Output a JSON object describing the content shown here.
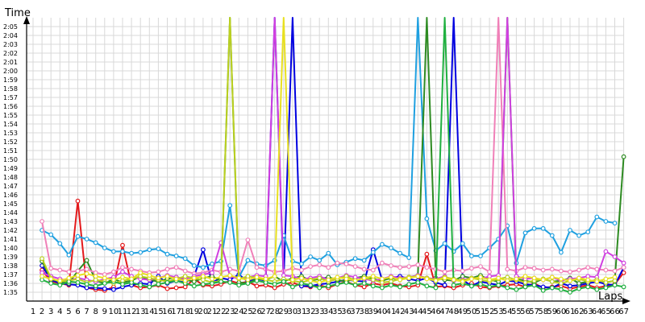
{
  "chart_data": {
    "type": "line",
    "title": "",
    "ylabel": "Time",
    "xlabel": "Laps",
    "x": [
      1,
      2,
      3,
      4,
      5,
      6,
      7,
      8,
      9,
      10,
      11,
      12,
      13,
      14,
      15,
      16,
      17,
      18,
      19,
      20,
      21,
      22,
      23,
      24,
      25,
      26,
      27,
      28,
      29,
      30,
      31,
      32,
      33,
      34,
      35,
      36,
      37,
      38,
      39,
      40,
      41,
      42,
      43,
      44,
      45,
      46,
      47,
      48,
      49,
      50,
      51,
      52,
      53,
      54,
      55,
      56,
      57,
      58,
      59,
      60,
      61,
      62,
      63,
      64,
      65,
      66,
      67
    ],
    "x_tick_labels": [
      "1",
      "2",
      "3",
      "4",
      "5",
      "6",
      "7",
      "8",
      "9",
      "10",
      "11",
      "12",
      "13",
      "14",
      "15",
      "16",
      "17",
      "18",
      "19",
      "20",
      "21",
      "22",
      "23",
      "24",
      "25",
      "26",
      "27",
      "28",
      "29",
      "30",
      "31",
      "32",
      "33",
      "34",
      "35",
      "36",
      "37",
      "38",
      "39",
      "40",
      "41",
      "42",
      "43",
      "44",
      "45",
      "46",
      "47",
      "48",
      "49",
      "50",
      "51",
      "52",
      "53",
      "54",
      "55",
      "56",
      "57",
      "58",
      "59",
      "60",
      "61",
      "62",
      "63",
      "64",
      "65",
      "66",
      "67"
    ],
    "y_unit": "seconds",
    "ylim": [
      94,
      126
    ],
    "y_ticks": [
      95,
      96,
      97,
      98,
      99,
      100,
      101,
      102,
      103,
      104,
      105,
      106,
      107,
      108,
      109,
      110,
      111,
      112,
      113,
      114,
      115,
      116,
      117,
      118,
      119,
      120,
      121,
      122,
      123,
      124,
      125
    ],
    "y_tick_labels": [
      "1:35",
      "1:36",
      "1:37",
      "1:38",
      "1:39",
      "1:40",
      "1:41",
      "1:42",
      "1:43",
      "1:44",
      "1:45",
      "1:46",
      "1:47",
      "1:48",
      "1:49",
      "1:50",
      "1:51",
      "1:52",
      "1:53",
      "1:54",
      "1:55",
      "1:56",
      "1:57",
      "1:58",
      "1:59",
      "2:00",
      "2:01",
      "2:02",
      "2:03",
      "2:04",
      "2:05"
    ],
    "grid": true,
    "legend": "none",
    "series": [
      {
        "color": "#e31a1c",
        "values": [
          null,
          97.5,
          96.2,
          96,
          95.8,
          105.3,
          95.5,
          95.3,
          95.2,
          95.6,
          100.3,
          95.8,
          95.5,
          95.6,
          95.8,
          95.4,
          95.5,
          95.6,
          96.5,
          95.8,
          95.7,
          95.9,
          96.3,
          96,
          96.2,
          95.7,
          95.8,
          95.5,
          95.9,
          96.1,
          95.7,
          95.6,
          95.8,
          95.5,
          95.9,
          96.2,
          95.8,
          95.6,
          96,
          95.8,
          96,
          95.7,
          95.6,
          95.8,
          99.3,
          95.6,
          95.7,
          95.5,
          95.8,
          96,
          95.6,
          95.5,
          95.7,
          95.8,
          95.9,
          95.6,
          96,
          95.5,
          95.6,
          95.7,
          95.4,
          95.6,
          95.8,
          95.5,
          95.7,
          95.9,
          97.2
        ]
      },
      {
        "color": "#0000e0",
        "values": [
          null,
          98,
          96.4,
          96,
          95.9,
          95.8,
          95.5,
          95.5,
          95.4,
          95.3,
          95.6,
          95.8,
          96,
          95.9,
          96.8,
          96,
          96.3,
          96.1,
          96.8,
          99.8,
          96.1,
          96.6,
          96.4,
          97,
          96.2,
          96.5,
          96.3,
          130,
          96.2,
          130,
          95.7,
          95.7,
          95.9,
          96,
          96.2,
          96.4,
          96.3,
          96.2,
          99.8,
          96.4,
          96.6,
          96.8,
          96.5,
          96.3,
          96.6,
          96.1,
          95.8,
          130,
          96.4,
          95.7,
          96.2,
          96,
          95.8,
          96.3,
          96.2,
          95.9,
          95.8,
          95.6,
          95.5,
          96,
          95.7,
          95.8,
          96,
          96.2,
          95.9,
          95.8,
          97.8
        ]
      },
      {
        "color": "#1fa0e0",
        "values": [
          null,
          102,
          101.5,
          100.5,
          99.2,
          101.3,
          101,
          100.6,
          100,
          99.6,
          99.6,
          99.4,
          99.5,
          99.8,
          99.9,
          99.3,
          99.1,
          98.8,
          98,
          97.8,
          98.2,
          98.5,
          104.8,
          96.7,
          98.6,
          98.2,
          98,
          98.6,
          101.4,
          98.5,
          98.2,
          99,
          98.6,
          99.4,
          98.1,
          98.4,
          98.8,
          98.6,
          99.5,
          100.4,
          100,
          99.4,
          98.9,
          130,
          103.3,
          99.7,
          100.5,
          99.6,
          100.5,
          99.1,
          99.1,
          100,
          101,
          102.5,
          98.3,
          101.7,
          102.2,
          102.2,
          101.4,
          99.5,
          102,
          101.4,
          101.8,
          103.5,
          103,
          102.8,
          null
        ]
      },
      {
        "color": "#2e8b22",
        "values": [
          null,
          98.5,
          96.5,
          96.2,
          96,
          97.4,
          98.6,
          96.3,
          96,
          96.5,
          96.1,
          96.3,
          96.8,
          96.4,
          96.2,
          96.5,
          96.7,
          96.4,
          96.2,
          96.6,
          96.8,
          96.3,
          130,
          96.1,
          96,
          96.5,
          96.4,
          96.8,
          96.2,
          96.6,
          96.8,
          96.3,
          96.5,
          96.7,
          96.4,
          96.2,
          96.6,
          96.8,
          96.5,
          96.3,
          96.6,
          96.4,
          96.7,
          96.9,
          130,
          96.6,
          96.4,
          96.3,
          96.8,
          96.6,
          96.9,
          96.4,
          96.2,
          130,
          96.5,
          96.3,
          96.1,
          96.5,
          96.2,
          96.3,
          96.6,
          96,
          96.2,
          96.4,
          96.1,
          96.3,
          110.3
        ]
      },
      {
        "color": "#f080b8",
        "values": [
          null,
          103,
          97.7,
          97.5,
          97.3,
          97.4,
          97.6,
          97.2,
          97,
          97.3,
          97.8,
          97.6,
          97.4,
          97.2,
          97.3,
          97.6,
          97.8,
          97.4,
          97.1,
          97.2,
          97.5,
          97.3,
          97.6,
          97.4,
          100.9,
          97.8,
          97.6,
          97.3,
          97.4,
          97.7,
          97.5,
          97.9,
          98.1,
          97.8,
          98.3,
          98.2,
          97.9,
          97.6,
          97.5,
          98.3,
          98,
          97.8,
          97.9,
          98.1,
          97.8,
          97.6,
          97.3,
          97.5,
          97.4,
          97.7,
          97.9,
          97.3,
          130,
          97.6,
          97.4,
          97.8,
          97.7,
          97.5,
          97.6,
          97.4,
          97.3,
          97.5,
          97.8,
          97.6,
          97.5,
          97.4,
          97.8
        ]
      },
      {
        "color": "#d040e0",
        "values": [
          null,
          97.2,
          96.8,
          96.5,
          96.3,
          96.6,
          96.4,
          96.2,
          96.5,
          96.7,
          97.3,
          96.8,
          96.5,
          96.4,
          96.6,
          96.9,
          96.7,
          96.5,
          96.8,
          97,
          97.2,
          100.6,
          96.8,
          96.5,
          96.7,
          96.9,
          96.8,
          130,
          96.9,
          96.8,
          96.5,
          96.6,
          96.8,
          96.4,
          96.6,
          96.9,
          96.7,
          96.5,
          96.3,
          96.5,
          96.8,
          96.6,
          96.7,
          96.9,
          96.6,
          96.5,
          96.8,
          96.3,
          96.4,
          96.6,
          96.5,
          96.8,
          96.9,
          130,
          96.8,
          96.5,
          96.6,
          96.4,
          96.7,
          96.3,
          96.5,
          96.6,
          96.8,
          96.7,
          99.6,
          99,
          98.3
        ]
      },
      {
        "color": "#bcd020",
        "values": [
          null,
          98.8,
          96.6,
          96.2,
          96.3,
          96.5,
          96.1,
          96.4,
          96.2,
          96,
          96.3,
          96.5,
          96.8,
          96.6,
          96.4,
          96.2,
          96.5,
          96.8,
          96.6,
          96.4,
          96.1,
          96.3,
          130,
          96.5,
          96.8,
          96.6,
          96.4,
          96.2,
          96.5,
          96.3,
          96.1,
          96.4,
          96.6,
          96.2,
          96.5,
          96.8,
          96.3,
          96.6,
          96.4,
          96.1,
          96.2,
          96.5,
          96.7,
          96.8,
          96.6,
          96.4,
          96.7,
          96.5,
          96.3,
          96.6,
          96.4,
          96.2,
          96.5,
          96.7,
          96.4,
          96.1,
          96.3,
          96.5,
          96.2,
          96,
          96.3,
          96.5,
          96.2,
          96.4,
          96.1,
          96.3,
          null
        ]
      },
      {
        "color": "#20b040",
        "values": [
          null,
          96.4,
          96,
          95.8,
          96.2,
          96.1,
          95.9,
          95.7,
          96,
          96.2,
          95.9,
          96.1,
          95.8,
          95.6,
          95.9,
          96.1,
          96.3,
          96,
          95.7,
          95.9,
          96,
          96.2,
          96.1,
          95.8,
          96,
          96.3,
          96.1,
          95.9,
          96.2,
          95.6,
          96,
          95.8,
          95.5,
          95.7,
          95.9,
          96.1,
          95.8,
          96,
          95.7,
          95.5,
          95.8,
          95.6,
          95.9,
          96.1,
          95.7,
          95.5,
          130,
          95.8,
          96,
          95.7,
          95.9,
          95.6,
          95.8,
          95.5,
          95.3,
          95.6,
          95.8,
          95.2,
          95.5,
          95.3,
          95,
          95.4,
          95.6,
          95.3,
          95.5,
          95.8,
          95.6
        ]
      },
      {
        "color": "#e8e020",
        "values": [
          null,
          96.8,
          96.5,
          96.3,
          96.6,
          96.9,
          97.1,
          96.8,
          96.6,
          96.4,
          96.7,
          96.5,
          97.2,
          96.9,
          96.6,
          96.8,
          96.5,
          96.3,
          96.6,
          96.8,
          96.5,
          96.7,
          96.9,
          96.6,
          96.4,
          96.7,
          96.5,
          96.8,
          130,
          96.4,
          96.6,
          96.3,
          96.1,
          96.4,
          96.7,
          96.5,
          96.3,
          96.6,
          96.8,
          96.5,
          96.7,
          96.4,
          96.6,
          96.8,
          96.5,
          96.3,
          96.6,
          96.4,
          96.2,
          96.5,
          96.7,
          96.4,
          96.6,
          96.3,
          96.5,
          96.8,
          96.6,
          96.4,
          96.7,
          96.5,
          96.3,
          96.6,
          96.4,
          96.2,
          96.5,
          96.7,
          null
        ]
      }
    ]
  }
}
